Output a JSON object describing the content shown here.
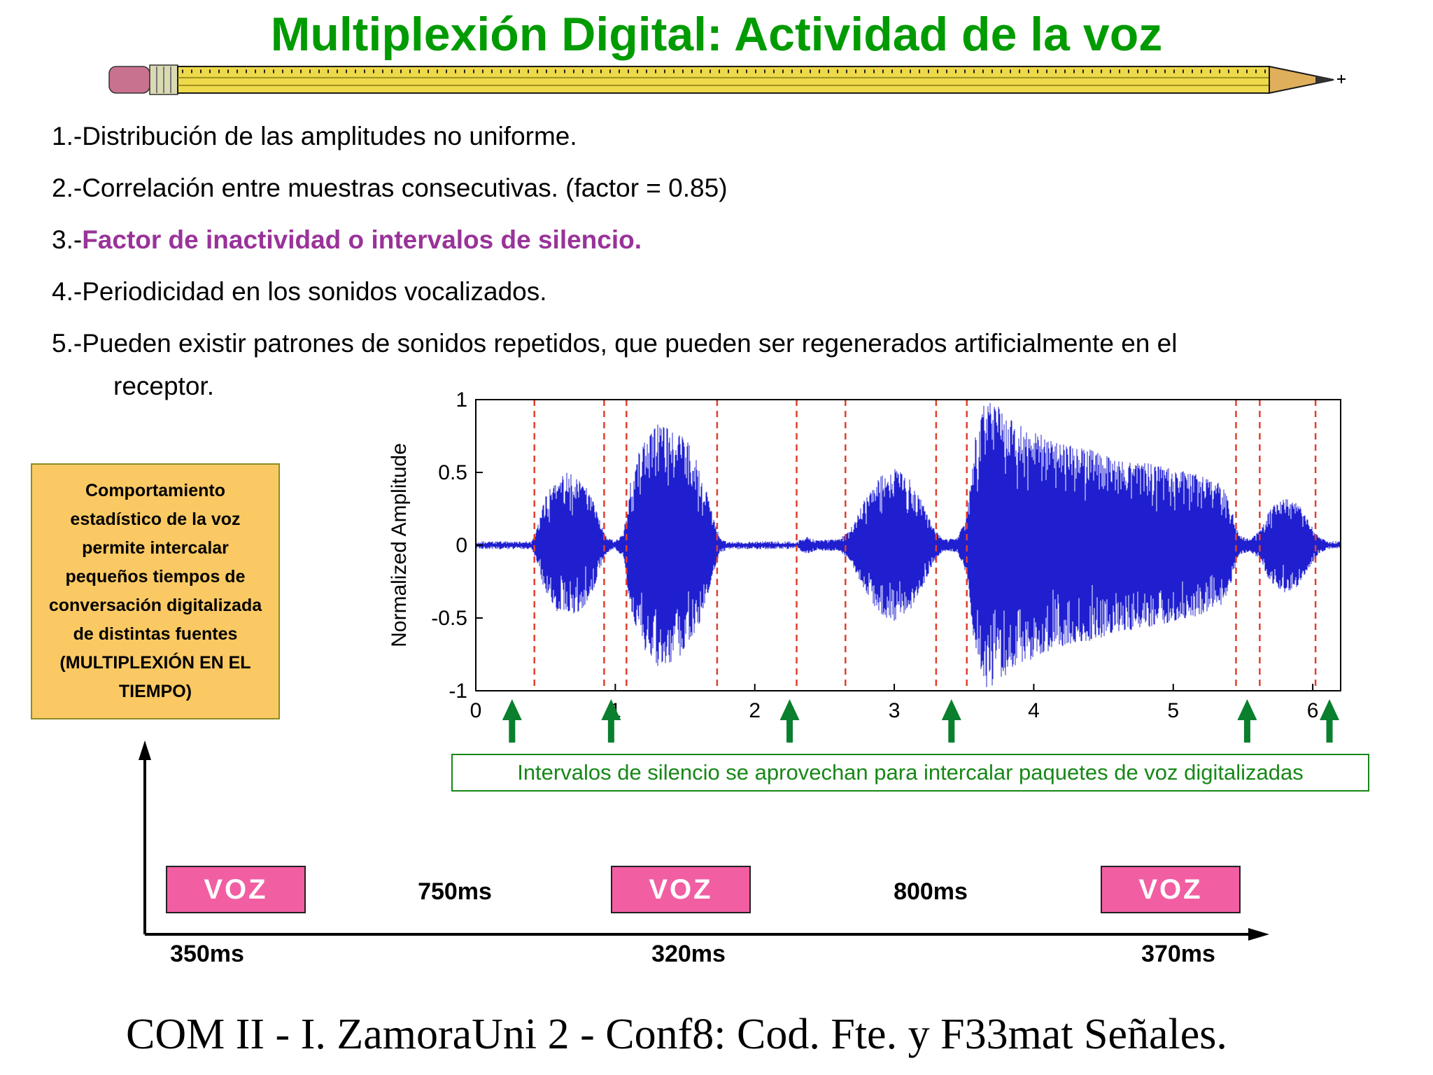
{
  "slide": {
    "title": "Multiplexión Digital: Actividad de la voz",
    "title_color": "#009B00"
  },
  "list": {
    "highlight_color": "#993399",
    "items": [
      {
        "prefix": "1.-",
        "text": "Distribución de las amplitudes no uniforme."
      },
      {
        "prefix": "2.-",
        "text": "Correlación entre muestras consecutivas. (factor = 0.85)"
      },
      {
        "prefix": "3.-",
        "text": "Factor de inactividad o intervalos de silencio."
      },
      {
        "prefix": "4.-",
        "text": "Periodicidad en los sonidos vocalizados."
      },
      {
        "prefix": "5.-",
        "text": "Pueden existir patrones de sonidos repetidos, que pueden ser regenerados artificialmente en el",
        "text2": "receptor."
      }
    ]
  },
  "note_box": {
    "bg_color": "#FBC963",
    "lines": [
      "Comportamiento",
      "estadístico de la voz",
      "permite intercalar",
      "pequeños tiempos de",
      "conversación digitalizada",
      "de distintas fuentes",
      "(MULTIPLEXIÓN EN EL",
      "TIEMPO)"
    ]
  },
  "caption_box": {
    "text": "Intervalos de silencio se aprovechan para intercalar paquetes de voz digitalizadas",
    "color": "#178717"
  },
  "timeline": {
    "box_color": "#F25EA2",
    "boxes": [
      {
        "label": "VOZ",
        "duration": "350ms"
      },
      {
        "label": "VOZ",
        "duration": "320ms"
      },
      {
        "label": "VOZ",
        "duration": "370ms"
      }
    ],
    "gaps": [
      "750ms",
      "800ms"
    ]
  },
  "footer": {
    "left": "COM II - I. Zamora",
    "center_pre": "Uni 2 - Conf8: Cod. Fte. y F",
    "page_number": "33",
    "center_post": "mat Señales."
  },
  "chart_data": {
    "type": "line",
    "title": "",
    "xlabel": "",
    "ylabel": "Normalized Amplitude",
    "xlim": [
      0,
      6.2
    ],
    "ylim": [
      -1,
      1
    ],
    "xticks": [
      0,
      1,
      2,
      3,
      4,
      5,
      6
    ],
    "yticks": [
      1,
      0.5,
      0,
      -0.5,
      -1
    ],
    "ytick_labels": [
      "1",
      "0.5",
      "0",
      "-0.5",
      "-1"
    ],
    "grid": false,
    "line_color": "#1F1FD0",
    "silence_marker_color": "#E0402F",
    "silence_markers_x": [
      0.42,
      0.92,
      1.08,
      1.73,
      2.3,
      2.65,
      3.3,
      3.52,
      5.45,
      5.62,
      6.02
    ],
    "arrow_color": "#0A7F2E",
    "arrows_x": [
      0.26,
      0.97,
      2.25,
      3.41,
      5.53,
      6.12
    ],
    "envelope_points": [
      [
        0,
        0.015
      ],
      [
        0.4,
        0.02
      ],
      [
        0.44,
        0.12
      ],
      [
        0.5,
        0.34
      ],
      [
        0.58,
        0.46
      ],
      [
        0.65,
        0.5
      ],
      [
        0.75,
        0.46
      ],
      [
        0.83,
        0.34
      ],
      [
        0.9,
        0.14
      ],
      [
        0.94,
        0.05
      ],
      [
        1.0,
        0.03
      ],
      [
        1.06,
        0.08
      ],
      [
        1.1,
        0.4
      ],
      [
        1.18,
        0.68
      ],
      [
        1.3,
        0.84
      ],
      [
        1.42,
        0.8
      ],
      [
        1.52,
        0.72
      ],
      [
        1.62,
        0.5
      ],
      [
        1.7,
        0.2
      ],
      [
        1.75,
        0.05
      ],
      [
        1.82,
        0.025
      ],
      [
        2.1,
        0.022
      ],
      [
        2.3,
        0.03
      ],
      [
        2.38,
        0.06
      ],
      [
        2.44,
        0.035
      ],
      [
        2.6,
        0.04
      ],
      [
        2.68,
        0.1
      ],
      [
        2.78,
        0.3
      ],
      [
        2.9,
        0.48
      ],
      [
        3.0,
        0.53
      ],
      [
        3.1,
        0.47
      ],
      [
        3.2,
        0.3
      ],
      [
        3.28,
        0.12
      ],
      [
        3.35,
        0.04
      ],
      [
        3.45,
        0.05
      ],
      [
        3.52,
        0.2
      ],
      [
        3.58,
        0.75
      ],
      [
        3.65,
        1.0
      ],
      [
        3.75,
        0.95
      ],
      [
        3.85,
        0.85
      ],
      [
        4.0,
        0.78
      ],
      [
        4.2,
        0.7
      ],
      [
        4.4,
        0.66
      ],
      [
        4.6,
        0.6
      ],
      [
        4.8,
        0.57
      ],
      [
        5.0,
        0.53
      ],
      [
        5.2,
        0.48
      ],
      [
        5.35,
        0.42
      ],
      [
        5.42,
        0.25
      ],
      [
        5.47,
        0.07
      ],
      [
        5.55,
        0.04
      ],
      [
        5.62,
        0.1
      ],
      [
        5.7,
        0.26
      ],
      [
        5.8,
        0.33
      ],
      [
        5.9,
        0.28
      ],
      [
        5.98,
        0.15
      ],
      [
        6.04,
        0.06
      ],
      [
        6.1,
        0.03
      ],
      [
        6.2,
        0.015
      ]
    ]
  }
}
